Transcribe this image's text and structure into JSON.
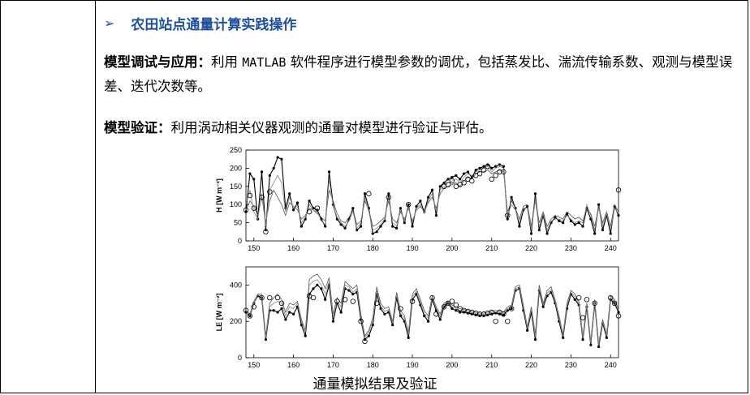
{
  "heading": {
    "bullet_icon": "arrow-right-icon",
    "text": "农田站点通量计算实践操作"
  },
  "para1": {
    "label": "模型调试与应用：",
    "pre": "利用 ",
    "code": "MATLAB",
    "post": " 软件程序进行模型参数的调优，包括蒸发比、湍流传输系数、观测与模型误差、迭代次数等。"
  },
  "para2": {
    "label": "模型验证：",
    "text": "利用涡动相关仪器观测的通量对模型进行验证与评估。"
  },
  "caption": "通量模拟结果及验证",
  "chart_data": [
    {
      "type": "line",
      "ylabel": "H [W m⁻²]",
      "xlim": [
        148,
        242
      ],
      "ylim": [
        0,
        250
      ],
      "yticks": [
        0,
        50,
        100,
        150,
        200,
        250
      ],
      "xticks": [
        150,
        160,
        170,
        180,
        190,
        200,
        210,
        220,
        230,
        240
      ],
      "grid": false,
      "x": [
        148,
        149,
        150,
        151,
        152,
        153,
        154,
        155,
        156,
        157,
        158,
        159,
        160,
        161,
        162,
        163,
        164,
        165,
        166,
        167,
        168,
        169,
        170,
        171,
        172,
        173,
        174,
        175,
        176,
        177,
        178,
        179,
        180,
        181,
        182,
        183,
        184,
        185,
        186,
        187,
        188,
        189,
        190,
        191,
        192,
        193,
        194,
        195,
        196,
        197,
        198,
        199,
        200,
        201,
        202,
        203,
        204,
        205,
        206,
        207,
        208,
        209,
        210,
        211,
        212,
        213,
        214,
        215,
        216,
        217,
        218,
        219,
        220,
        221,
        222,
        223,
        224,
        225,
        226,
        227,
        228,
        229,
        230,
        231,
        232,
        233,
        234,
        235,
        236,
        237,
        238,
        239,
        240,
        241,
        242
      ],
      "series": [
        {
          "values": [
            80,
            185,
            170,
            60,
            190,
            30,
            180,
            200,
            230,
            225,
            90,
            130,
            85,
            105,
            40,
            60,
            110,
            90,
            85,
            60,
            40,
            190,
            100,
            60,
            45,
            35,
            60,
            90,
            30,
            40,
            130,
            90,
            20,
            25,
            40,
            55,
            130,
            40,
            35,
            90,
            50,
            100,
            40,
            95,
            110,
            80,
            120,
            140,
            70,
            150,
            160,
            170,
            175,
            180,
            170,
            185,
            190,
            175,
            195,
            200,
            205,
            210,
            200,
            205,
            210,
            205,
            60,
            120,
            90,
            40,
            85,
            95,
            20,
            130,
            30,
            70,
            20,
            50,
            65,
            55,
            50,
            75,
            55,
            45,
            50,
            40,
            90,
            60,
            20,
            100,
            30,
            70,
            20,
            95,
            70
          ]
        },
        {
          "values": [
            85,
            110,
            95,
            70,
            120,
            50,
            110,
            140,
            120,
            100,
            70,
            105,
            95,
            85,
            60,
            70,
            90,
            85,
            75,
            65,
            55,
            140,
            110,
            75,
            55,
            50,
            65,
            85,
            45,
            55,
            110,
            85,
            40,
            45,
            55,
            65,
            110,
            60,
            50,
            80,
            60,
            90,
            55,
            85,
            95,
            80,
            105,
            120,
            90,
            130,
            145,
            150,
            155,
            160,
            150,
            165,
            175,
            170,
            185,
            190,
            190,
            195,
            185,
            190,
            195,
            190,
            80,
            110,
            90,
            60,
            95,
            100,
            40,
            120,
            50,
            80,
            40,
            60,
            70,
            65,
            60,
            80,
            70,
            60,
            65,
            55,
            90,
            75,
            40,
            95,
            50,
            80,
            40,
            100,
            80
          ]
        },
        {
          "values": [
            100,
            140,
            80,
            60,
            130,
            40,
            140,
            160,
            180,
            160,
            80,
            120,
            90,
            95,
            50,
            65,
            100,
            85,
            80,
            55,
            45,
            170,
            95,
            65,
            50,
            40,
            55,
            80,
            35,
            50,
            120,
            80,
            30,
            35,
            45,
            60,
            120,
            50,
            40,
            85,
            55,
            95,
            50,
            90,
            100,
            75,
            110,
            130,
            80,
            140,
            150,
            160,
            165,
            170,
            160,
            175,
            185,
            180,
            190,
            195,
            200,
            205,
            190,
            200,
            205,
            200,
            70,
            100,
            85,
            50,
            90,
            90,
            30,
            110,
            40,
            75,
            30,
            55,
            60,
            60,
            55,
            70,
            60,
            50,
            55,
            50,
            100,
            70,
            30,
            90,
            40,
            75,
            30,
            90,
            75
          ]
        },
        {
          "values": [
            85,
            125,
            90,
            null,
            120,
            25,
            135,
            null,
            null,
            null,
            null,
            null,
            null,
            null,
            null,
            null,
            80,
            null,
            90,
            null,
            null,
            null,
            null,
            null,
            null,
            null,
            null,
            null,
            null,
            null,
            null,
            130,
            null,
            null,
            null,
            null,
            120,
            null,
            null,
            null,
            null,
            100,
            null,
            null,
            null,
            null,
            null,
            null,
            null,
            null,
            150,
            155,
            165,
            150,
            155,
            160,
            170,
            165,
            180,
            185,
            195,
            205,
            170,
            180,
            190,
            190,
            70,
            null,
            null,
            null,
            null,
            null,
            null,
            null,
            null,
            null,
            null,
            null,
            null,
            null,
            null,
            null,
            null,
            null,
            null,
            null,
            null,
            null,
            null,
            null,
            null,
            null,
            null,
            null,
            140
          ]
        }
      ]
    },
    {
      "type": "line",
      "ylabel": "LE [W m⁻²]",
      "xlim": [
        148,
        242
      ],
      "ylim": [
        0,
        500
      ],
      "yticks": [
        0,
        200,
        400
      ],
      "xticks": [
        150,
        160,
        170,
        180,
        190,
        200,
        210,
        220,
        230,
        240
      ],
      "grid": false,
      "x": [
        148,
        149,
        150,
        151,
        152,
        153,
        154,
        155,
        156,
        157,
        158,
        159,
        160,
        161,
        162,
        163,
        164,
        165,
        166,
        167,
        168,
        169,
        170,
        171,
        172,
        173,
        174,
        175,
        176,
        177,
        178,
        179,
        180,
        181,
        182,
        183,
        184,
        185,
        186,
        187,
        188,
        189,
        190,
        191,
        192,
        193,
        194,
        195,
        196,
        197,
        198,
        199,
        200,
        201,
        202,
        203,
        204,
        205,
        206,
        207,
        208,
        209,
        210,
        211,
        212,
        213,
        214,
        215,
        216,
        217,
        218,
        219,
        220,
        221,
        222,
        223,
        224,
        225,
        226,
        227,
        228,
        229,
        230,
        231,
        232,
        233,
        234,
        235,
        236,
        237,
        238,
        239,
        240,
        241,
        242
      ],
      "series": [
        {
          "values": [
            250,
            230,
            300,
            340,
            330,
            100,
            260,
            260,
            250,
            270,
            210,
            250,
            240,
            280,
            180,
            120,
            350,
            380,
            400,
            380,
            320,
            400,
            200,
            300,
            250,
            380,
            370,
            350,
            360,
            210,
            100,
            120,
            180,
            350,
            270,
            240,
            250,
            180,
            330,
            230,
            200,
            110,
            320,
            350,
            290,
            230,
            200,
            320,
            260,
            210,
            280,
            300,
            270,
            260,
            250,
            250,
            245,
            240,
            235,
            230,
            230,
            235,
            240,
            245,
            240,
            235,
            260,
            270,
            370,
            380,
            260,
            150,
            250,
            100,
            370,
            280,
            340,
            360,
            300,
            200,
            110,
            270,
            350,
            320,
            290,
            100,
            280,
            70,
            300,
            60,
            190,
            110,
            320,
            300,
            250
          ]
        },
        {
          "values": [
            260,
            240,
            310,
            350,
            350,
            120,
            300,
            330,
            350,
            320,
            250,
            300,
            290,
            310,
            210,
            150,
            430,
            450,
            460,
            430,
            380,
            440,
            240,
            330,
            300,
            420,
            400,
            380,
            400,
            240,
            120,
            150,
            220,
            390,
            300,
            270,
            280,
            200,
            360,
            260,
            230,
            140,
            350,
            380,
            320,
            260,
            230,
            340,
            280,
            240,
            300,
            310,
            290,
            280,
            270,
            265,
            260,
            255,
            250,
            245,
            245,
            250,
            255,
            260,
            255,
            250,
            280,
            290,
            390,
            400,
            290,
            170,
            280,
            130,
            400,
            300,
            370,
            390,
            320,
            230,
            130,
            300,
            370,
            350,
            310,
            120,
            300,
            90,
            320,
            80,
            210,
            130,
            340,
            320,
            270
          ]
        },
        {
          "values": [
            250,
            235,
            300,
            345,
            340,
            110,
            280,
            300,
            310,
            300,
            230,
            280,
            270,
            300,
            200,
            140,
            400,
            420,
            430,
            400,
            350,
            420,
            220,
            310,
            280,
            400,
            390,
            360,
            380,
            225,
            110,
            140,
            200,
            370,
            285,
            255,
            265,
            190,
            345,
            245,
            215,
            125,
            335,
            365,
            305,
            245,
            215,
            330,
            270,
            225,
            290,
            305,
            280,
            270,
            260,
            258,
            252,
            248,
            243,
            238,
            238,
            242,
            248,
            252,
            248,
            243,
            270,
            280,
            380,
            390,
            275,
            160,
            265,
            115,
            385,
            290,
            355,
            375,
            310,
            215,
            120,
            285,
            360,
            335,
            300,
            110,
            290,
            80,
            310,
            70,
            200,
            120,
            330,
            310,
            260
          ]
        },
        {
          "values": [
            260,
            230,
            280,
            null,
            330,
            null,
            330,
            null,
            330,
            300,
            null,
            null,
            null,
            null,
            null,
            null,
            340,
            330,
            null,
            null,
            null,
            null,
            null,
            310,
            null,
            320,
            null,
            310,
            null,
            200,
            90,
            null,
            null,
            300,
            null,
            null,
            null,
            null,
            null,
            270,
            null,
            null,
            310,
            null,
            null,
            null,
            null,
            330,
            240,
            null,
            280,
            300,
            310,
            290,
            270,
            260,
            255,
            250,
            245,
            240,
            240,
            245,
            250,
            200,
            250,
            240,
            200,
            270,
            null,
            null,
            null,
            null,
            null,
            null,
            null,
            null,
            null,
            null,
            null,
            null,
            null,
            null,
            null,
            null,
            330,
            220,
            320,
            null,
            300,
            null,
            null,
            null,
            330,
            300,
            230
          ]
        }
      ]
    }
  ]
}
